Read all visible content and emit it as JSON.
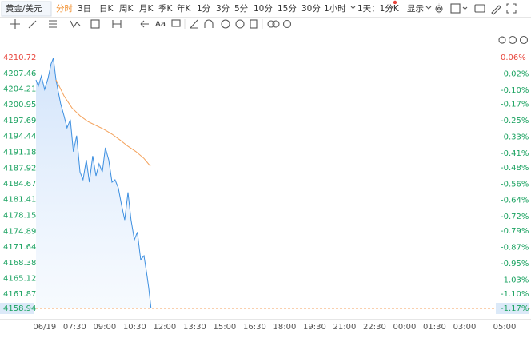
{
  "toolbar": {
    "symbol": "黄金/美元",
    "periods": [
      "分时",
      "3日",
      "日K",
      "周K",
      "月K",
      "季K",
      "年K",
      "1分",
      "3分",
      "5分",
      "10分",
      "15分",
      "30分",
      "1小时",
      "1天：1分K"
    ],
    "active_period": 0,
    "display": "显示"
  },
  "drawing_tools": {
    "text_tool": "Aa"
  },
  "chart_data": {
    "type": "line",
    "series": [
      {
        "color": "#3d8fe0",
        "area": true,
        "x": [
          -26,
          -19,
          -10,
          0,
          10,
          19,
          26,
          34,
          41,
          48,
          58,
          67,
          77,
          86,
          96,
          106,
          115,
          125,
          134,
          144,
          154,
          163,
          173,
          182,
          192,
          202,
          211,
          221,
          230,
          240,
          250,
          259,
          269,
          278,
          288,
          298,
          307,
          312,
          319
        ],
        "values": [
          4206.1,
          4204.8,
          4206.9,
          4204.1,
          4206.4,
          4209.4,
          4210.6,
          4206.1,
          4203.6,
          4201.2,
          4198.7,
          4196.2,
          4197.9,
          4191.3,
          4194.6,
          4187.1,
          4185.5,
          4189.6,
          4185.0,
          4190.4,
          4186.3,
          4188.8,
          4187.1,
          4192.1,
          4189.6,
          4185.0,
          4185.5,
          4183.8,
          4180.5,
          4177.2,
          4182.9,
          4177.2,
          4173.1,
          4174.7,
          4169.0,
          4169.8,
          4165.7,
          4163.2,
          4158.94
        ]
      },
      {
        "color": "#f4a25c",
        "area": false,
        "x": [
          34,
          58,
          82,
          106,
          130,
          154,
          178,
          202,
          226,
          250,
          274,
          298,
          317
        ],
        "values": [
          4206.1,
          4202.8,
          4200.3,
          4198.7,
          4197.5,
          4196.7,
          4195.9,
          4194.9,
          4193.7,
          4192.4,
          4191.3,
          4189.9,
          4188.3
        ]
      }
    ],
    "xlim": [
      -26,
      1440
    ],
    "xticks": [
      {
        "value": 0,
        "label": "06/19"
      },
      {
        "value": 90,
        "label": "07:30"
      },
      {
        "value": 180,
        "label": "09:00"
      },
      {
        "value": 270,
        "label": "10:30"
      },
      {
        "value": 360,
        "label": "12:00"
      },
      {
        "value": 450,
        "label": "13:30"
      },
      {
        "value": 540,
        "label": "15:00"
      },
      {
        "value": 630,
        "label": "16:30"
      },
      {
        "value": 720,
        "label": "18:00"
      },
      {
        "value": 810,
        "label": "19:30"
      },
      {
        "value": 900,
        "label": "21:00"
      },
      {
        "value": 990,
        "label": "22:30"
      },
      {
        "value": 1080,
        "label": "00:00"
      },
      {
        "value": 1170,
        "label": "01:30"
      },
      {
        "value": 1260,
        "label": "03:00"
      },
      {
        "value": 1380,
        "label": "05:00"
      }
    ],
    "ylim": [
      4158.94,
      4210.72
    ],
    "yticks": [
      4210.72,
      4207.46,
      4204.21,
      4200.95,
      4197.69,
      4194.44,
      4191.18,
      4187.92,
      4184.67,
      4181.41,
      4178.15,
      4174.89,
      4171.64,
      4168.38,
      4165.12,
      4161.87,
      4158.94
    ],
    "y2lim": [
      -1.17,
      0.06
    ],
    "y2ticks": [
      {
        "value": 0.06,
        "label": "0.06%"
      },
      {
        "value": -0.02,
        "label": "-0.02%"
      },
      {
        "value": -0.1,
        "label": "-0.10%"
      },
      {
        "value": -0.17,
        "label": "-0.17%"
      },
      {
        "value": -0.25,
        "label": "-0.25%"
      },
      {
        "value": -0.33,
        "label": "-0.33%"
      },
      {
        "value": -0.41,
        "label": "-0.41%"
      },
      {
        "value": -0.48,
        "label": "-0.48%"
      },
      {
        "value": -0.56,
        "label": "-0.56%"
      },
      {
        "value": -0.64,
        "label": "-0.64%"
      },
      {
        "value": -0.72,
        "label": "-0.72%"
      },
      {
        "value": -0.79,
        "label": "-0.79%"
      },
      {
        "value": -0.87,
        "label": "-0.87%"
      },
      {
        "value": -0.95,
        "label": "-0.95%"
      },
      {
        "value": -1.03,
        "label": "-1.03%"
      },
      {
        "value": -1.1,
        "label": "-1.10%"
      },
      {
        "value": -1.17,
        "label": "-1.17%"
      }
    ],
    "up_color": "#e8453c",
    "down_color": "#1aa260",
    "last_line_color": "#f4a25c"
  }
}
